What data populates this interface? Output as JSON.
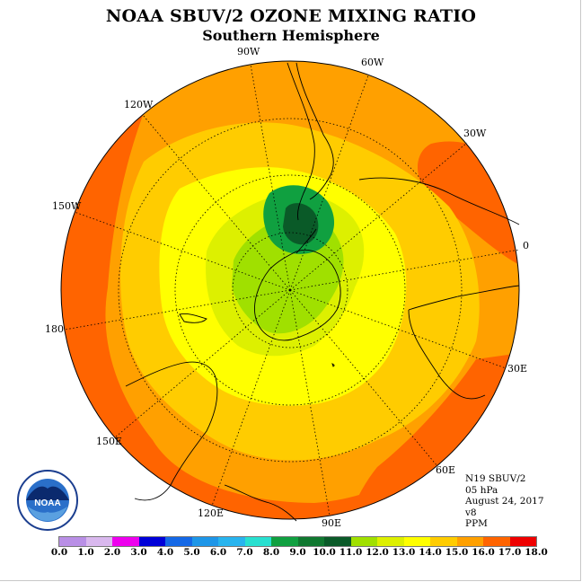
{
  "title": "NOAA SBUV/2 OZONE MIXING RATIO",
  "subtitle": "Southern Hemisphere",
  "longitude_labels": [
    "90W",
    "60W",
    "30W",
    "0",
    "30E",
    "60E",
    "90E",
    "120E",
    "150E",
    "180",
    "150W",
    "120W"
  ],
  "info": {
    "instrument": "N19 SBUV/2",
    "level": "05 hPa",
    "date": "August 24, 2017",
    "version": "v8",
    "units": "PPM"
  },
  "colorbar": {
    "ticks": [
      "0.0",
      "1.0",
      "2.0",
      "3.0",
      "4.0",
      "5.0",
      "6.0",
      "7.0",
      "8.0",
      "9.0",
      "10.0",
      "11.0",
      "12.0",
      "13.0",
      "14.0",
      "15.0",
      "16.0",
      "17.0",
      "18.0"
    ],
    "colors": [
      "#b98fe6",
      "#d9b8ee",
      "#ee00ee",
      "#0000d8",
      "#1468e6",
      "#1e96e8",
      "#28b4ee",
      "#28e0d0",
      "#10a040",
      "#107830",
      "#0a5a28",
      "#a0e000",
      "#ddf000",
      "#ffff00",
      "#ffcc00",
      "#ffa000",
      "#ff6400",
      "#ee0000",
      "#8b5a3c"
    ]
  },
  "logo": {
    "text": "NOAA",
    "ring_text": "NATIONAL OCEANIC AND ATMOSPHERIC ADMINISTRATION · U.S. DEPARTMENT OF COMMERCE"
  }
}
